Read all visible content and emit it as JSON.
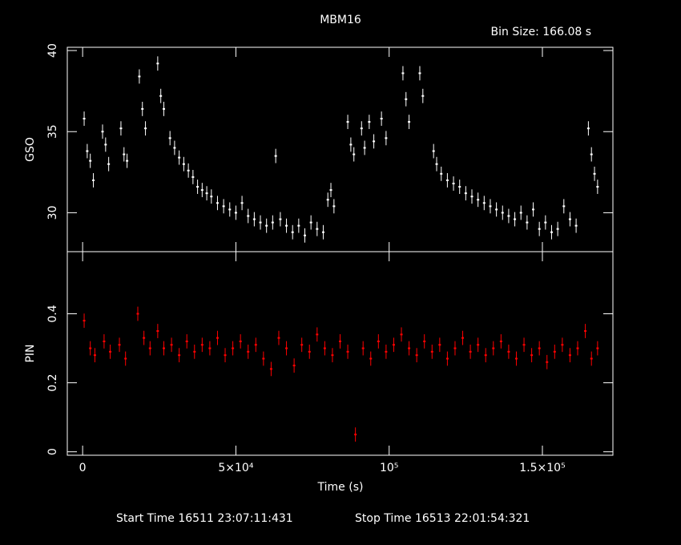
{
  "chart_data": {
    "type": "scatter",
    "title": "MBM16",
    "bin_size_label": "Bin Size: 166.08 s",
    "xlabel": "Time (s)",
    "xlim": [
      -5000,
      173000
    ],
    "x_tick_labels": [
      "0",
      "5×10⁴",
      "10⁵",
      "1.5×10⁵"
    ],
    "x_tick_values": [
      0,
      50000,
      100000,
      150000
    ],
    "footer": {
      "start": "Start Time 16511  23:07:11:431",
      "stop": "Stop Time 16513  22:01:54:321"
    },
    "panels": [
      {
        "name": "GSO",
        "ylabel": "GSO",
        "ylim": [
          27.6,
          40.2
        ],
        "y_tick_values": [
          30,
          35,
          40
        ],
        "y_tick_labels": [
          "30",
          "35",
          "40"
        ],
        "color": "#ffffff",
        "points": [
          [
            500,
            35.8
          ],
          [
            1500,
            33.8
          ],
          [
            2500,
            33.2
          ],
          [
            3500,
            32.0
          ],
          [
            6500,
            35.0
          ],
          [
            7500,
            34.2
          ],
          [
            8500,
            33.0
          ],
          [
            12500,
            35.2
          ],
          [
            13500,
            33.6
          ],
          [
            14500,
            33.2
          ],
          [
            18500,
            38.4
          ],
          [
            19500,
            36.4
          ],
          [
            20500,
            35.2
          ],
          [
            24500,
            39.2
          ],
          [
            25500,
            37.2
          ],
          [
            26500,
            36.4
          ],
          [
            28500,
            34.6
          ],
          [
            30000,
            34.0
          ],
          [
            31500,
            33.4
          ],
          [
            33000,
            33.0
          ],
          [
            34500,
            32.6
          ],
          [
            36000,
            32.2
          ],
          [
            37500,
            31.6
          ],
          [
            39000,
            31.4
          ],
          [
            40500,
            31.2
          ],
          [
            42000,
            31.0
          ],
          [
            44000,
            30.6
          ],
          [
            46000,
            30.4
          ],
          [
            48000,
            30.2
          ],
          [
            50000,
            30.0
          ],
          [
            52000,
            30.6
          ],
          [
            54000,
            29.8
          ],
          [
            56000,
            29.6
          ],
          [
            58000,
            29.4
          ],
          [
            60000,
            29.2
          ],
          [
            62000,
            29.4
          ],
          [
            63000,
            33.5
          ],
          [
            64500,
            29.6
          ],
          [
            66500,
            29.2
          ],
          [
            68500,
            28.8
          ],
          [
            70500,
            29.2
          ],
          [
            72500,
            28.6
          ],
          [
            74500,
            29.4
          ],
          [
            76500,
            29.0
          ],
          [
            78500,
            28.8
          ],
          [
            80000,
            30.8
          ],
          [
            81000,
            31.4
          ],
          [
            82000,
            30.4
          ],
          [
            86500,
            35.6
          ],
          [
            87500,
            34.2
          ],
          [
            88500,
            33.6
          ],
          [
            91000,
            35.2
          ],
          [
            92000,
            34.0
          ],
          [
            93500,
            35.6
          ],
          [
            95000,
            34.4
          ],
          [
            97500,
            35.8
          ],
          [
            99000,
            34.6
          ],
          [
            104500,
            38.6
          ],
          [
            105500,
            37.0
          ],
          [
            106500,
            35.6
          ],
          [
            110000,
            38.6
          ],
          [
            111000,
            37.2
          ],
          [
            114500,
            33.8
          ],
          [
            115500,
            33.0
          ],
          [
            117000,
            32.4
          ],
          [
            119000,
            32.0
          ],
          [
            121000,
            31.8
          ],
          [
            123000,
            31.6
          ],
          [
            125000,
            31.2
          ],
          [
            127000,
            31.0
          ],
          [
            129000,
            30.8
          ],
          [
            131000,
            30.6
          ],
          [
            133000,
            30.4
          ],
          [
            135000,
            30.2
          ],
          [
            137000,
            30.0
          ],
          [
            139000,
            29.8
          ],
          [
            141000,
            29.6
          ],
          [
            143000,
            30.0
          ],
          [
            145000,
            29.4
          ],
          [
            147000,
            30.2
          ],
          [
            149000,
            29.0
          ],
          [
            151000,
            29.4
          ],
          [
            153000,
            28.8
          ],
          [
            155000,
            29.0
          ],
          [
            157000,
            30.4
          ],
          [
            159000,
            29.6
          ],
          [
            161000,
            29.2
          ],
          [
            165000,
            35.2
          ],
          [
            166000,
            33.6
          ],
          [
            167000,
            32.4
          ],
          [
            168000,
            31.6
          ]
        ]
      },
      {
        "name": "PIN",
        "ylabel": "PIN",
        "ylim": [
          -0.01,
          0.58
        ],
        "y_tick_values": [
          0,
          0.2,
          0.4
        ],
        "y_tick_labels": [
          "0",
          "0.2",
          "0.4"
        ],
        "color": "#ff0000",
        "points": [
          [
            500,
            0.38
          ],
          [
            2500,
            0.3
          ],
          [
            4000,
            0.28
          ],
          [
            7000,
            0.32
          ],
          [
            9000,
            0.29
          ],
          [
            12000,
            0.31
          ],
          [
            14000,
            0.27
          ],
          [
            18000,
            0.4
          ],
          [
            20000,
            0.33
          ],
          [
            22000,
            0.3
          ],
          [
            24500,
            0.35
          ],
          [
            26500,
            0.3
          ],
          [
            29000,
            0.31
          ],
          [
            31500,
            0.28
          ],
          [
            34000,
            0.32
          ],
          [
            36500,
            0.29
          ],
          [
            39000,
            0.31
          ],
          [
            41500,
            0.3
          ],
          [
            44000,
            0.33
          ],
          [
            46500,
            0.28
          ],
          [
            49000,
            0.3
          ],
          [
            51500,
            0.32
          ],
          [
            54000,
            0.29
          ],
          [
            56500,
            0.31
          ],
          [
            59000,
            0.27
          ],
          [
            61500,
            0.24
          ],
          [
            64000,
            0.33
          ],
          [
            66500,
            0.3
          ],
          [
            69000,
            0.25
          ],
          [
            71500,
            0.31
          ],
          [
            74000,
            0.29
          ],
          [
            76500,
            0.34
          ],
          [
            79000,
            0.3
          ],
          [
            81500,
            0.28
          ],
          [
            84000,
            0.32
          ],
          [
            86500,
            0.29
          ],
          [
            89000,
            0.05
          ],
          [
            91500,
            0.3
          ],
          [
            94000,
            0.27
          ],
          [
            96500,
            0.32
          ],
          [
            99000,
            0.29
          ],
          [
            101500,
            0.31
          ],
          [
            104000,
            0.34
          ],
          [
            106500,
            0.3
          ],
          [
            109000,
            0.28
          ],
          [
            111500,
            0.32
          ],
          [
            114000,
            0.29
          ],
          [
            116500,
            0.31
          ],
          [
            119000,
            0.27
          ],
          [
            121500,
            0.3
          ],
          [
            124000,
            0.33
          ],
          [
            126500,
            0.29
          ],
          [
            129000,
            0.31
          ],
          [
            131500,
            0.28
          ],
          [
            134000,
            0.3
          ],
          [
            136500,
            0.32
          ],
          [
            139000,
            0.29
          ],
          [
            141500,
            0.27
          ],
          [
            144000,
            0.31
          ],
          [
            146500,
            0.28
          ],
          [
            149000,
            0.3
          ],
          [
            151500,
            0.26
          ],
          [
            154000,
            0.29
          ],
          [
            156500,
            0.31
          ],
          [
            159000,
            0.28
          ],
          [
            161500,
            0.3
          ],
          [
            164000,
            0.35
          ],
          [
            166000,
            0.27
          ],
          [
            168000,
            0.3
          ]
        ]
      }
    ]
  }
}
